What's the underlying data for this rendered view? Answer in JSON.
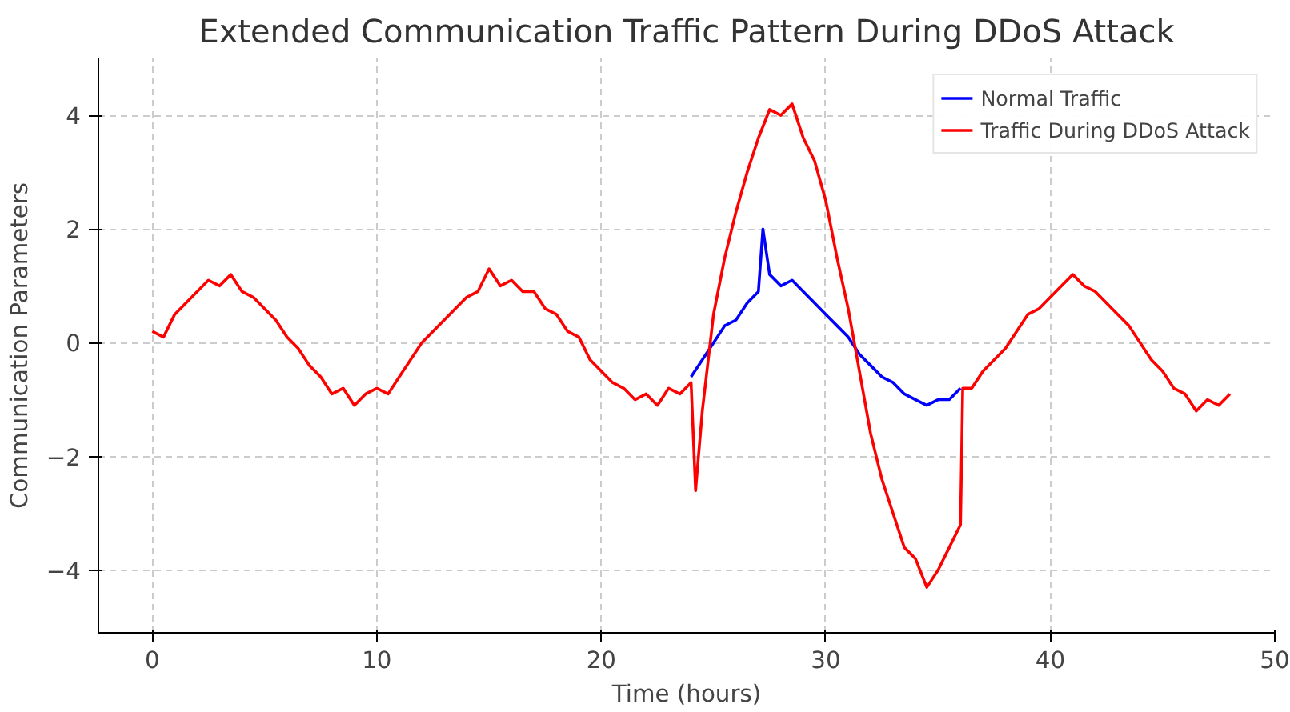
{
  "chart_data": {
    "type": "line",
    "title": "Extended Communication Traffic Pattern During DDoS Attack",
    "xlabel": "Time (hours)",
    "ylabel": "Communication Parameters",
    "xlim": [
      -2.4,
      50
    ],
    "xticks": [
      0,
      10,
      20,
      30,
      40,
      50
    ],
    "ylim": [
      -5.1,
      5
    ],
    "yticks": [
      -4,
      -2,
      0,
      2,
      4
    ],
    "grid": true,
    "legend": "top right",
    "line_style": "solid",
    "marker": "none",
    "series": [
      {
        "name": "Normal Traffic",
        "color": "#0000ff",
        "x": [
          24,
          24.5,
          25,
          25.5,
          26,
          26.5,
          27,
          27.2,
          27.5,
          28,
          28.5,
          29,
          29.5,
          30,
          30.5,
          31,
          31.5,
          32,
          32.5,
          33,
          33.5,
          34,
          34.5,
          35,
          35.5,
          36
        ],
        "values": [
          -0.6,
          -0.3,
          0.0,
          0.3,
          0.4,
          0.7,
          0.9,
          2.0,
          1.2,
          1.0,
          1.1,
          0.9,
          0.7,
          0.5,
          0.3,
          0.1,
          -0.2,
          -0.4,
          -0.6,
          -0.7,
          -0.9,
          -1.0,
          -1.1,
          -1.0,
          -1.0,
          -0.8
        ]
      },
      {
        "name": "Traffic During DDoS Attack",
        "color": "#ff0000",
        "x": [
          0,
          0.5,
          1,
          1.5,
          2,
          2.5,
          3,
          3.5,
          4,
          4.5,
          5,
          5.5,
          6,
          6.5,
          7,
          7.5,
          8,
          8.5,
          9,
          9.5,
          10,
          10.5,
          11,
          11.5,
          12,
          12.5,
          13,
          13.5,
          14,
          14.5,
          15,
          15.5,
          16,
          16.5,
          17,
          17.5,
          18,
          18.5,
          19,
          19.5,
          20,
          20.5,
          21,
          21.5,
          22,
          22.5,
          23,
          23.5,
          24,
          24.2,
          24.5,
          25,
          25.5,
          26,
          26.5,
          27,
          27.5,
          28,
          28.5,
          29,
          29.5,
          30,
          30.5,
          31,
          31.5,
          32,
          32.5,
          33,
          33.5,
          34,
          34.5,
          35,
          35.5,
          36,
          36.1,
          36.5,
          37,
          37.5,
          38,
          38.5,
          39,
          39.5,
          40,
          40.5,
          41,
          41.5,
          42,
          42.5,
          43,
          43.5,
          44,
          44.5,
          45,
          45.5,
          46,
          46.5,
          47,
          47.5,
          48
        ],
        "values": [
          0.2,
          0.1,
          0.5,
          0.7,
          0.9,
          1.1,
          1.0,
          1.2,
          0.9,
          0.8,
          0.6,
          0.4,
          0.1,
          -0.1,
          -0.4,
          -0.6,
          -0.9,
          -0.8,
          -1.1,
          -0.9,
          -0.8,
          -0.9,
          -0.6,
          -0.3,
          0.0,
          0.2,
          0.4,
          0.6,
          0.8,
          0.9,
          1.3,
          1.0,
          1.1,
          0.9,
          0.9,
          0.6,
          0.5,
          0.2,
          0.1,
          -0.3,
          -0.5,
          -0.7,
          -0.8,
          -1.0,
          -0.9,
          -1.1,
          -0.8,
          -0.9,
          -0.7,
          -2.6,
          -1.2,
          0.5,
          1.5,
          2.3,
          3.0,
          3.6,
          4.1,
          4.0,
          4.2,
          3.6,
          3.2,
          2.5,
          1.5,
          0.6,
          -0.5,
          -1.6,
          -2.4,
          -3.0,
          -3.6,
          -3.8,
          -4.3,
          -4.0,
          -3.6,
          -3.2,
          -0.8,
          -0.8,
          -0.5,
          -0.3,
          -0.1,
          0.2,
          0.5,
          0.6,
          0.8,
          1.0,
          1.2,
          1.0,
          0.9,
          0.7,
          0.5,
          0.3,
          0.0,
          -0.3,
          -0.5,
          -0.8,
          -0.9,
          -1.2,
          -1.0,
          -1.1,
          -0.9
        ]
      }
    ]
  }
}
